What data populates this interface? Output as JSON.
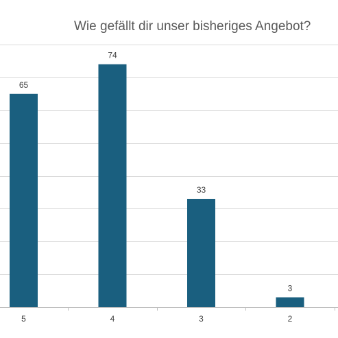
{
  "chart_data": {
    "type": "bar",
    "title": "Wie gefällt dir unser bisheriges Angebot?",
    "categories": [
      "5",
      "4",
      "3",
      "2"
    ],
    "values": [
      65,
      74,
      33,
      3
    ],
    "data_labels": [
      "65",
      "74",
      "33",
      "3"
    ],
    "xlabel": "",
    "ylabel": "",
    "ylim": [
      0,
      80
    ],
    "grid": true,
    "legend": "none",
    "bar_color": "#1a5f7f"
  }
}
